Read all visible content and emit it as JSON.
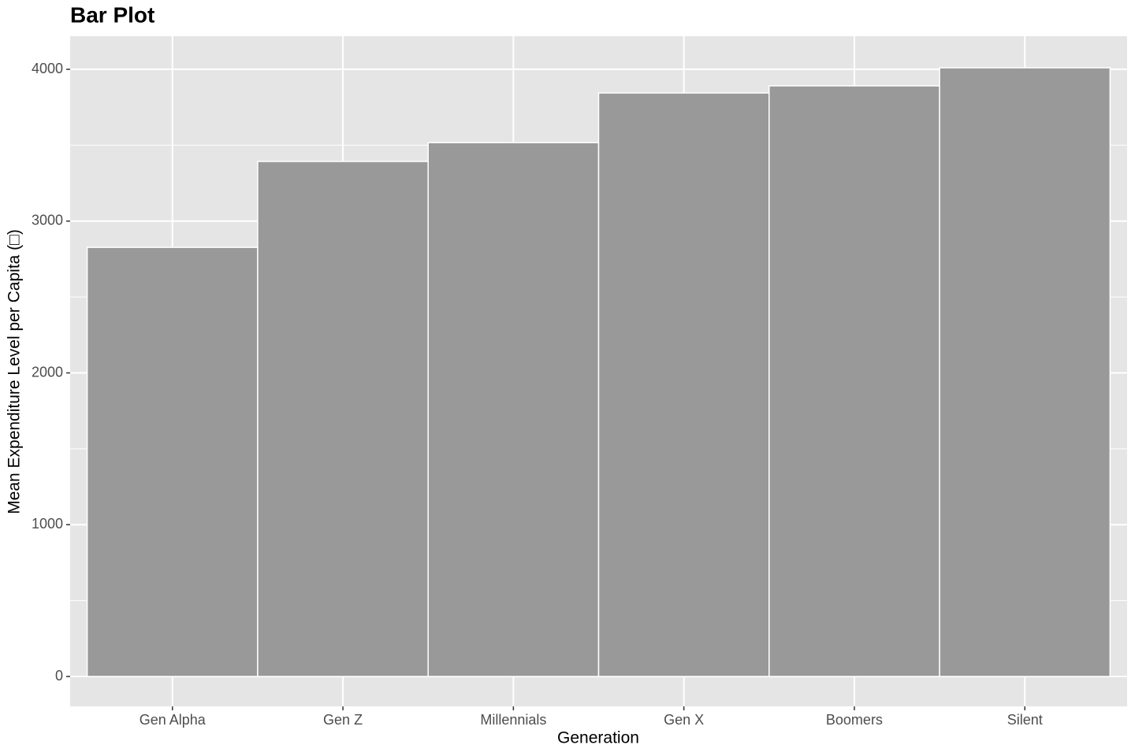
{
  "chart_data": {
    "type": "bar",
    "title": "Bar Plot",
    "x_label": "Generation",
    "y_label": "Mean Expenditure Level per Capita (□)",
    "categories": [
      "Gen Alpha",
      "Gen Z",
      "Millennials",
      "Gen X",
      "Boomers",
      "Silent"
    ],
    "values": [
      2827,
      3393,
      3517,
      3844,
      3891,
      4010
    ],
    "color": "#999999",
    "edge_color": "#ffffff",
    "ylim": [
      -197,
      4218
    ],
    "yticks": [
      0,
      1000,
      2000,
      3000,
      4000
    ],
    "y_minor_ticks": [
      500,
      1500,
      2500,
      3500
    ],
    "grid": true,
    "panel_color": "#e5e5e5"
  }
}
